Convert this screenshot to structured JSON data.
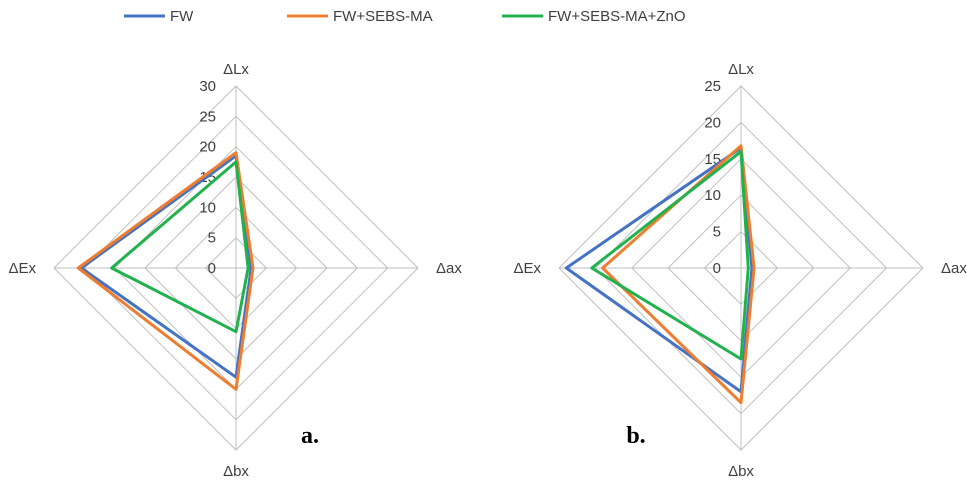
{
  "legend": [
    {
      "name": "FW",
      "color": "#4472C4"
    },
    {
      "name": "FW+SEBS-MA",
      "color": "#ED7D31"
    },
    {
      "name": "FW+SEBS-MA+ZnO",
      "color": "#21B14D"
    }
  ],
  "chart_data": [
    {
      "type": "radar",
      "panel_label": "a.",
      "axes": [
        "ΔLx",
        "Δax",
        "Δbx",
        "ΔEx"
      ],
      "ticks": [
        0,
        5,
        10,
        15,
        20,
        25,
        30
      ],
      "range": [
        0,
        30
      ],
      "grid": true,
      "legend_position": "top",
      "series": [
        {
          "name": "FW",
          "values": [
            18.5,
            2.5,
            18.0,
            25.5
          ]
        },
        {
          "name": "FW+SEBS-MA",
          "values": [
            19.0,
            2.8,
            20.0,
            26.0
          ]
        },
        {
          "name": "FW+SEBS-MA+ZnO",
          "values": [
            17.5,
            2.0,
            10.5,
            20.5
          ]
        }
      ]
    },
    {
      "type": "radar",
      "panel_label": "b.",
      "axes": [
        "ΔLx",
        "Δax",
        "Δbx",
        "ΔEx"
      ],
      "ticks": [
        0,
        5,
        10,
        15,
        20,
        25
      ],
      "range": [
        0,
        25
      ],
      "grid": true,
      "legend_position": "top",
      "series": [
        {
          "name": "FW",
          "values": [
            16.5,
            1.5,
            17.0,
            24.0
          ]
        },
        {
          "name": "FW+SEBS-MA",
          "values": [
            16.8,
            1.8,
            18.5,
            19.0
          ]
        },
        {
          "name": "FW+SEBS-MA+ZnO",
          "values": [
            16.0,
            1.0,
            12.5,
            20.5
          ]
        }
      ]
    }
  ]
}
